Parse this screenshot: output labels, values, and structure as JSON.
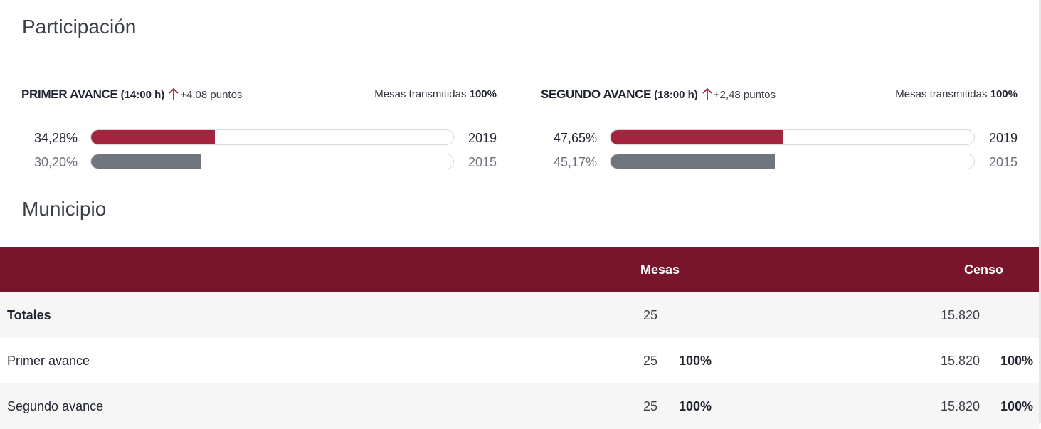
{
  "sections": {
    "participacion_title": "Participación",
    "municipio_title": "Municipio"
  },
  "colors": {
    "accent": "#a3243f",
    "header_bg": "#76152c",
    "bar_2015": "#6f757e"
  },
  "participation": {
    "first": {
      "title": "PRIMER AVANCE",
      "time": "(14:00 h)",
      "trend_icon": "arrow-up-icon",
      "delta": "+4,08 puntos",
      "mesas_label": "Mesas transmitidas",
      "mesas_value": "100%",
      "current": {
        "pct_label": "34,28%",
        "value": 34.28,
        "year": "2019"
      },
      "previous": {
        "pct_label": "30,20%",
        "value": 30.2,
        "year": "2015"
      }
    },
    "second": {
      "title": "SEGUNDO AVANCE",
      "time": "(18:00 h)",
      "trend_icon": "arrow-up-icon",
      "delta": "+2,48 puntos",
      "mesas_label": "Mesas transmitidas",
      "mesas_value": "100%",
      "current": {
        "pct_label": "47,65%",
        "value": 47.65,
        "year": "2019"
      },
      "previous": {
        "pct_label": "45,17%",
        "value": 45.17,
        "year": "2015"
      }
    }
  },
  "table": {
    "headers": {
      "mesas": "Mesas",
      "censo": "Censo"
    },
    "rows": [
      {
        "label": "Totales",
        "mesas": "25",
        "mesas_pct": "",
        "censo": "15.820",
        "censo_pct": ""
      },
      {
        "label": "Primer avance",
        "mesas": "25",
        "mesas_pct": "100%",
        "censo": "15.820",
        "censo_pct": "100%"
      },
      {
        "label": "Segundo avance",
        "mesas": "25",
        "mesas_pct": "100%",
        "censo": "15.820",
        "censo_pct": "100%"
      }
    ]
  }
}
